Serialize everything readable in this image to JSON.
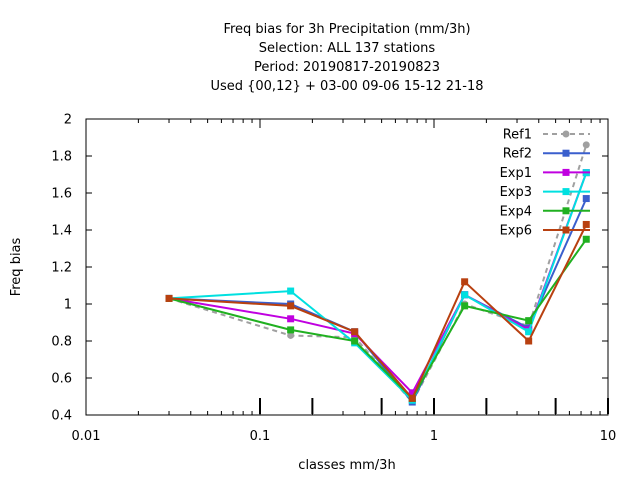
{
  "chart_data": {
    "type": "line",
    "title_lines": [
      "Freq bias  for 3h Precipitation (mm/3h)",
      "Selection: ALL    137 stations",
      "Period: 20190817-20190823",
      "Used {00,12} + 03-00 09-06 15-12 21-18"
    ],
    "xlabel": "classes mm/3h",
    "ylabel": "Freq bias",
    "x_scale": "log",
    "xlim": [
      0.01,
      10
    ],
    "ylim": [
      0.4,
      2.0
    ],
    "x_ticks": [
      0.01,
      0.1,
      1,
      10
    ],
    "x_tick_labels": [
      "0.01",
      "0.1",
      "1",
      "10"
    ],
    "y_ticks": [
      0.4,
      0.6,
      0.8,
      1.0,
      1.2,
      1.4,
      1.6,
      1.8,
      2.0
    ],
    "y_tick_labels": [
      "0.4",
      "0.6",
      "0.8",
      "1",
      "1.2",
      "1.4",
      "1.6",
      "1.8",
      "2"
    ],
    "class_marks": [
      0.1,
      0.2,
      0.5,
      1,
      2,
      5,
      10
    ],
    "legend_position": "top-right",
    "grid": false,
    "series": [
      {
        "name": "Ref1",
        "color": "#a0a0a0",
        "dash": true,
        "marker": "circle",
        "x": [
          0.03,
          0.15,
          0.35,
          0.75,
          1.5,
          3.5,
          7.5
        ],
        "y": [
          1.03,
          0.83,
          0.82,
          0.47,
          1.0,
          0.88,
          1.86
        ]
      },
      {
        "name": "Ref2",
        "color": "#3a5fcd",
        "dash": false,
        "marker": "square",
        "x": [
          0.03,
          0.15,
          0.35,
          0.75,
          1.5,
          3.5,
          7.5
        ],
        "y": [
          1.03,
          1.0,
          0.85,
          0.47,
          1.05,
          0.87,
          1.57
        ]
      },
      {
        "name": "Exp1",
        "color": "#c000e0",
        "dash": false,
        "marker": "square",
        "x": [
          0.03,
          0.15,
          0.35,
          0.75,
          1.5,
          3.5,
          7.5
        ],
        "y": [
          1.03,
          0.92,
          0.84,
          0.52,
          1.05,
          0.86,
          1.71
        ]
      },
      {
        "name": "Exp3",
        "color": "#00e0e0",
        "dash": false,
        "marker": "square",
        "x": [
          0.03,
          0.15,
          0.35,
          0.75,
          1.5,
          3.5,
          7.5
        ],
        "y": [
          1.03,
          1.07,
          0.79,
          0.48,
          1.05,
          0.85,
          1.71
        ]
      },
      {
        "name": "Exp4",
        "color": "#20b020",
        "dash": false,
        "marker": "square",
        "x": [
          0.03,
          0.15,
          0.35,
          0.75,
          1.5,
          3.5,
          7.5
        ],
        "y": [
          1.03,
          0.86,
          0.8,
          0.49,
          0.99,
          0.91,
          1.35
        ]
      },
      {
        "name": "Exp6",
        "color": "#b84010",
        "dash": false,
        "marker": "square",
        "x": [
          0.03,
          0.15,
          0.35,
          0.75,
          1.5,
          3.5,
          7.5
        ],
        "y": [
          1.03,
          0.99,
          0.85,
          0.49,
          1.12,
          0.8,
          1.43
        ]
      }
    ]
  }
}
